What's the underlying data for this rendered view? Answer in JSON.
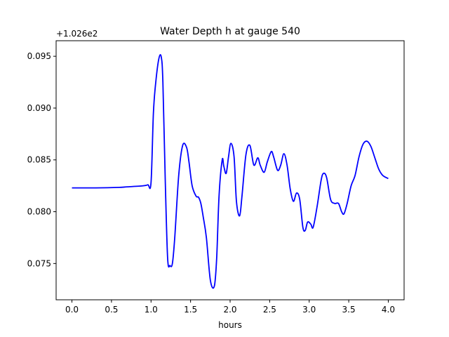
{
  "chart_data": {
    "type": "line",
    "title": "Water Depth h at gauge 540",
    "xlabel": "hours",
    "ylabel": "",
    "y_offset_label": "+1.026e2",
    "xlim": [
      -0.2,
      4.2
    ],
    "ylim": [
      0.0715,
      0.0965
    ],
    "x_ticks": [
      0.0,
      0.5,
      1.0,
      1.5,
      2.0,
      2.5,
      3.0,
      3.5,
      4.0
    ],
    "x_tick_labels": [
      "0.0",
      "0.5",
      "1.0",
      "1.5",
      "2.0",
      "2.5",
      "3.0",
      "3.5",
      "4.0"
    ],
    "y_ticks": [
      0.075,
      0.08,
      0.085,
      0.09,
      0.095
    ],
    "y_tick_labels": [
      "0.075",
      "0.080",
      "0.085",
      "0.090",
      "0.095"
    ],
    "grid": false,
    "legend": "none",
    "series": [
      {
        "color": "#0000ff",
        "x": [
          0.0,
          0.3,
          0.6,
          0.7,
          0.9,
          0.96,
          1.0,
          1.03,
          1.06,
          1.1,
          1.13,
          1.15,
          1.18,
          1.21,
          1.24,
          1.27,
          1.3,
          1.35,
          1.4,
          1.45,
          1.48,
          1.52,
          1.57,
          1.6,
          1.63,
          1.66,
          1.7,
          1.75,
          1.8,
          1.83,
          1.86,
          1.9,
          1.92,
          1.95,
          1.98,
          2.01,
          2.05,
          2.08,
          2.12,
          2.15,
          2.2,
          2.25,
          2.3,
          2.35,
          2.38,
          2.43,
          2.47,
          2.52,
          2.55,
          2.6,
          2.64,
          2.68,
          2.72,
          2.76,
          2.8,
          2.84,
          2.88,
          2.92,
          2.95,
          2.98,
          3.02,
          3.05,
          3.1,
          3.15,
          3.18,
          3.22,
          3.27,
          3.32,
          3.37,
          3.41,
          3.44,
          3.48,
          3.53,
          3.58,
          3.63,
          3.68,
          3.73,
          3.78,
          3.83,
          3.88,
          3.93,
          4.0
        ],
        "values": [
          0.0823,
          0.0823,
          0.08235,
          0.0824,
          0.0825,
          0.0826,
          0.0828,
          0.0895,
          0.0925,
          0.0948,
          0.0949,
          0.0925,
          0.083,
          0.0755,
          0.0748,
          0.075,
          0.0775,
          0.0835,
          0.0864,
          0.0862,
          0.0848,
          0.0825,
          0.0815,
          0.0814,
          0.0808,
          0.0795,
          0.0775,
          0.0734,
          0.0728,
          0.0755,
          0.0815,
          0.085,
          0.0844,
          0.0837,
          0.0853,
          0.0866,
          0.0853,
          0.081,
          0.0796,
          0.0815,
          0.0855,
          0.0864,
          0.0845,
          0.0852,
          0.0845,
          0.0838,
          0.0848,
          0.0858,
          0.0853,
          0.084,
          0.0845,
          0.0856,
          0.0845,
          0.0822,
          0.081,
          0.0818,
          0.0812,
          0.0785,
          0.0782,
          0.079,
          0.0788,
          0.0785,
          0.0805,
          0.083,
          0.0837,
          0.0833,
          0.0812,
          0.0808,
          0.0808,
          0.08,
          0.0798,
          0.0808,
          0.0825,
          0.0835,
          0.0853,
          0.0865,
          0.0868,
          0.0863,
          0.0852,
          0.0841,
          0.0835,
          0.0832
        ]
      }
    ]
  }
}
